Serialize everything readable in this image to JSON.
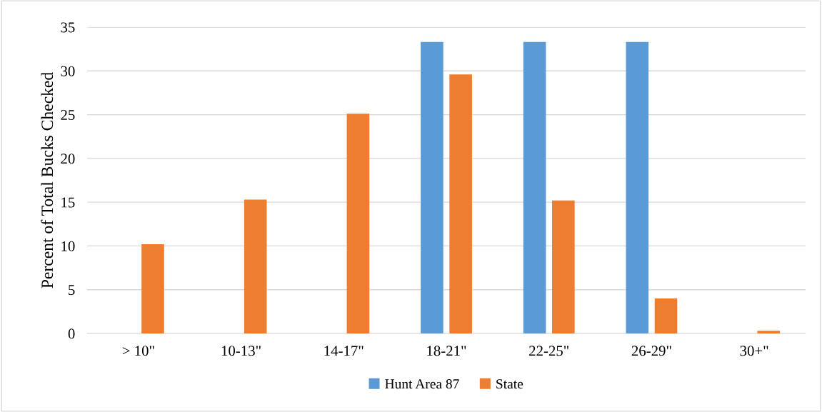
{
  "chart_data": {
    "type": "bar",
    "ylabel": "Percent of Total Bucks Checked",
    "categories": [
      "> 10\"",
      "10-13\"",
      "14-17\"",
      "18-21\"",
      "22-25\"",
      "26-29\"",
      "30+\""
    ],
    "series": [
      {
        "name": "Hunt Area 87",
        "color": "#5b9bd5",
        "values": [
          0,
          0,
          0,
          33.3,
          33.3,
          33.3,
          0
        ]
      },
      {
        "name": "State",
        "color": "#ed7d31",
        "values": [
          10.2,
          15.3,
          25.1,
          29.6,
          15.2,
          4.0,
          0.3
        ]
      }
    ],
    "ylim": [
      0,
      35
    ],
    "yticks": [
      0,
      5,
      10,
      15,
      20,
      25,
      30,
      35
    ],
    "grid": "y",
    "legend": "bottom"
  }
}
